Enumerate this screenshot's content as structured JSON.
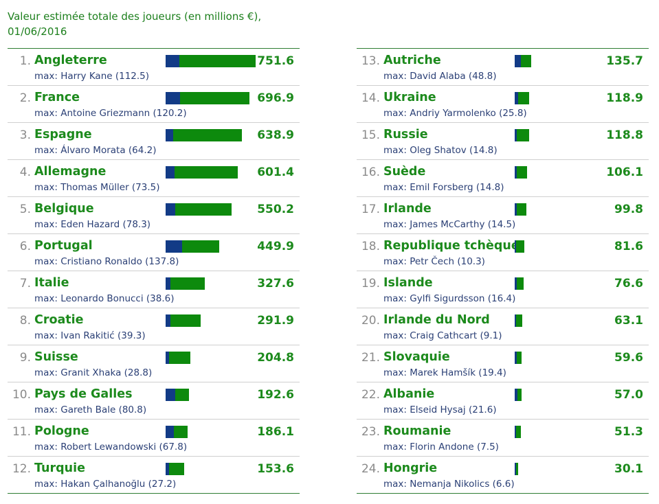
{
  "title_line1": "Valeur estimée totale des joueurs (en millions €),",
  "title_line2": "01/06/2016",
  "colors": {
    "max_player": "#123b86",
    "rest": "#0d8a0d",
    "country_text": "#1c8a1c"
  },
  "chart_data": {
    "type": "bar",
    "title": "Valeur estimée totale des joueurs (en millions €), 01/06/2016",
    "xmax": 751.6,
    "rows": [
      {
        "rank": "1.",
        "country": "Angleterre",
        "value": "751.6",
        "max_label": "max: Harry Kane (112.5)",
        "max_value": 112.5
      },
      {
        "rank": "2.",
        "country": "France",
        "value": "696.9",
        "max_label": "max: Antoine Griezmann (120.2)",
        "max_value": 120.2
      },
      {
        "rank": "3.",
        "country": "Espagne",
        "value": "638.9",
        "max_label": "max: Álvaro Morata (64.2)",
        "max_value": 64.2
      },
      {
        "rank": "4.",
        "country": "Allemagne",
        "value": "601.4",
        "max_label": "max: Thomas Müller (73.5)",
        "max_value": 73.5
      },
      {
        "rank": "5.",
        "country": "Belgique",
        "value": "550.2",
        "max_label": "max: Eden Hazard (78.3)",
        "max_value": 78.3
      },
      {
        "rank": "6.",
        "country": "Portugal",
        "value": "449.9",
        "max_label": "max: Cristiano Ronaldo (137.8)",
        "max_value": 137.8
      },
      {
        "rank": "7.",
        "country": "Italie",
        "value": "327.6",
        "max_label": "max: Leonardo Bonucci (38.6)",
        "max_value": 38.6
      },
      {
        "rank": "8.",
        "country": "Croatie",
        "value": "291.9",
        "max_label": "max: Ivan Rakitić (39.3)",
        "max_value": 39.3
      },
      {
        "rank": "9.",
        "country": "Suisse",
        "value": "204.8",
        "max_label": "max: Granit Xhaka (28.8)",
        "max_value": 28.8
      },
      {
        "rank": "10.",
        "country": "Pays de Galles",
        "value": "192.6",
        "max_label": "max: Gareth Bale (80.8)",
        "max_value": 80.8
      },
      {
        "rank": "11.",
        "country": "Pologne",
        "value": "186.1",
        "max_label": "max: Robert Lewandowski (67.8)",
        "max_value": 67.8
      },
      {
        "rank": "12.",
        "country": "Turquie",
        "value": "153.6",
        "max_label": "max: Hakan Çalhanoğlu (27.2)",
        "max_value": 27.2
      },
      {
        "rank": "13.",
        "country": "Autriche",
        "value": "135.7",
        "max_label": "max: David Alaba (48.8)",
        "max_value": 48.8
      },
      {
        "rank": "14.",
        "country": "Ukraine",
        "value": "118.9",
        "max_label": "max: Andriy Yarmolenko (25.8)",
        "max_value": 25.8
      },
      {
        "rank": "15.",
        "country": "Russie",
        "value": "118.8",
        "max_label": "max: Oleg Shatov (14.8)",
        "max_value": 14.8
      },
      {
        "rank": "16.",
        "country": "Suède",
        "value": "106.1",
        "max_label": "max: Emil Forsberg (14.8)",
        "max_value": 14.8
      },
      {
        "rank": "17.",
        "country": "Irlande",
        "value": "99.8",
        "max_label": "max: James McCarthy (14.5)",
        "max_value": 14.5
      },
      {
        "rank": "18.",
        "country": "Republique tchèque",
        "value": "81.6",
        "max_label": "max: Petr Čech (10.3)",
        "max_value": 10.3
      },
      {
        "rank": "19.",
        "country": "Islande",
        "value": "76.6",
        "max_label": "max: Gylfi Sigurdsson (16.4)",
        "max_value": 16.4
      },
      {
        "rank": "20.",
        "country": "Irlande du Nord",
        "value": "63.1",
        "max_label": "max: Craig Cathcart (9.1)",
        "max_value": 9.1
      },
      {
        "rank": "21.",
        "country": "Slovaquie",
        "value": "59.6",
        "max_label": "max: Marek Hamšík (19.4)",
        "max_value": 19.4
      },
      {
        "rank": "22.",
        "country": "Albanie",
        "value": "57.0",
        "max_label": "max: Elseid Hysaj (21.6)",
        "max_value": 21.6
      },
      {
        "rank": "23.",
        "country": "Roumanie",
        "value": "51.3",
        "max_label": "max: Florin Andone (7.5)",
        "max_value": 7.5
      },
      {
        "rank": "24.",
        "country": "Hongrie",
        "value": "30.1",
        "max_label": "max: Nemanja Nikolics (6.6)",
        "max_value": 6.6
      }
    ]
  }
}
